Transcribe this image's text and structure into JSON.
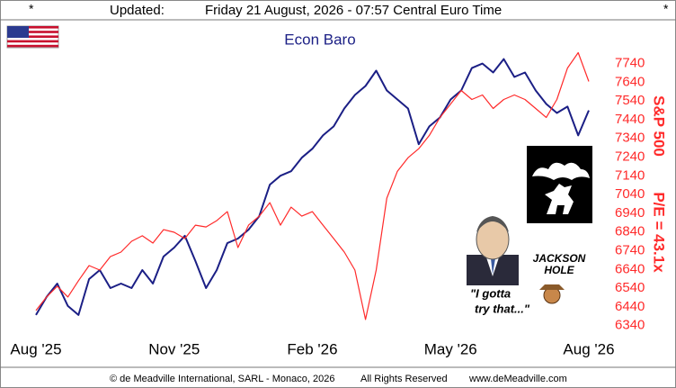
{
  "header": {
    "left_mark": "*",
    "updated": "Updated:",
    "timestamp": "Friday 21 August, 2026 - 07:57 Central Euro Time",
    "right_mark": "*"
  },
  "footer": {
    "copyright": "© de Meadville International, SARL - Monaco, 2026",
    "rights": "All Rights Reserved",
    "website": "www.deMeadville.com"
  },
  "chart_data": {
    "type": "line",
    "title": "Econ Baro",
    "ylabel": "S&P 500",
    "annotations": [
      "P/E = 43.1x",
      "JACKSON",
      "HOLE",
      "\"I gotta",
      "try that...\""
    ],
    "categories": [
      "Aug '25",
      null,
      null,
      null,
      null,
      null,
      null,
      null,
      null,
      null,
      null,
      null,
      null,
      "Nov '25",
      null,
      null,
      null,
      null,
      null,
      null,
      null,
      null,
      null,
      null,
      null,
      null,
      "Feb '26",
      null,
      null,
      null,
      null,
      null,
      null,
      null,
      null,
      null,
      null,
      null,
      null,
      "May '26",
      null,
      null,
      null,
      null,
      null,
      null,
      null,
      null,
      null,
      null,
      null,
      null,
      "Aug '26"
    ],
    "series": [
      {
        "name": "Econ Baro",
        "color": "#1b1f85",
        "values": [
          6397,
          6493,
          6565,
          6445,
          6397,
          6589,
          6637,
          6541,
          6565,
          6541,
          6637,
          6565,
          6709,
          6757,
          6820,
          6685,
          6541,
          6637,
          6781,
          6805,
          6853,
          6925,
          7093,
          7141,
          7165,
          7237,
          7285,
          7356,
          7404,
          7500,
          7572,
          7620,
          7702,
          7596,
          7548,
          7500,
          7309,
          7404,
          7452,
          7548,
          7596,
          7716,
          7740,
          7692,
          7764,
          7668,
          7692,
          7596,
          7524,
          7476,
          7510,
          7356,
          7490
        ]
      },
      {
        "name": "S&P 500",
        "color": "#ff2a2a",
        "values": [
          6421,
          6493,
          6551,
          6493,
          6580,
          6661,
          6637,
          6709,
          6733,
          6791,
          6820,
          6781,
          6853,
          6839,
          6805,
          6877,
          6867,
          6901,
          6949,
          6757,
          6877,
          6925,
          6997,
          6877,
          6973,
          6925,
          6949,
          6877,
          6805,
          6733,
          6637,
          6373,
          6637,
          7021,
          7165,
          7237,
          7285,
          7356,
          7452,
          7524,
          7596,
          7548,
          7572,
          7500,
          7548,
          7572,
          7548,
          7500,
          7452,
          7548,
          7716,
          7798,
          7644
        ]
      }
    ],
    "ylim": [
      6310,
      7810
    ],
    "yticks": [
      6340,
      6440,
      6540,
      6640,
      6740,
      6840,
      6940,
      7040,
      7140,
      7240,
      7340,
      7440,
      7540,
      7640,
      7740
    ],
    "ytick_color": "#ff2a2a",
    "grid": false
  }
}
